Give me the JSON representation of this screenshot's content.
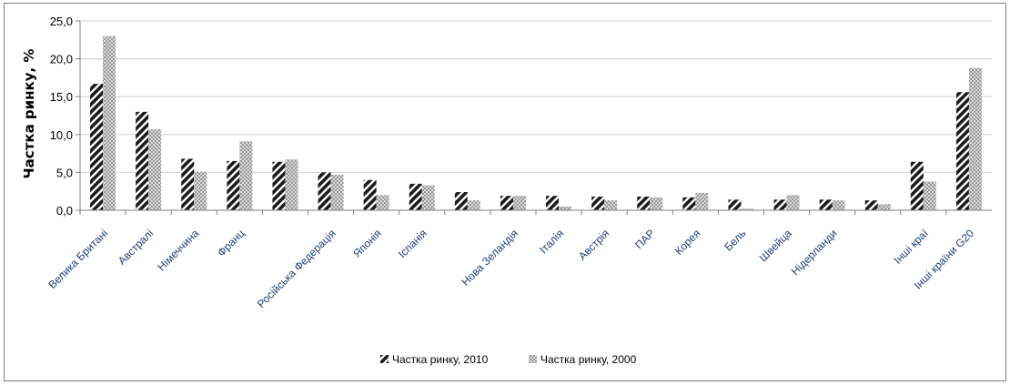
{
  "chart_data": {
    "type": "bar",
    "title": "",
    "xlabel": "",
    "ylabel": "Частка ринку, %",
    "ylim": [
      0,
      25
    ],
    "yticks": [
      "0,0",
      "5,0",
      "10,0",
      "15,0",
      "20,0",
      "25,0"
    ],
    "grid": true,
    "legend_position": "bottom",
    "categories": [
      "Велика Британі",
      "Австралі",
      "Німеччина",
      "Франц",
      "",
      "Російська Федерація",
      "Японія",
      "Іспанія",
      "",
      "Нова Зеландія",
      "Італія",
      "Австрія",
      "ПАР",
      "Корея",
      "Бель",
      "Швейца",
      "Нідерланди",
      "",
      "Інші краї",
      "Інші країни G20"
    ],
    "series": [
      {
        "name": "Частка ринку, 2010",
        "pattern": "dark-diagonal-stripes",
        "color": "#1a1a1a",
        "values": [
          16.7,
          13.0,
          6.8,
          6.5,
          6.4,
          5.0,
          4.0,
          3.5,
          2.4,
          1.9,
          1.9,
          1.8,
          1.8,
          1.7,
          1.4,
          1.4,
          1.4,
          1.3,
          6.4,
          15.6
        ]
      },
      {
        "name": "Частка ринку, 2000",
        "pattern": "light-grey-checker",
        "color": "#b0b0b0",
        "values": [
          23.0,
          10.7,
          5.1,
          9.1,
          6.7,
          4.7,
          2.0,
          3.3,
          1.3,
          1.9,
          0.5,
          1.3,
          1.7,
          2.3,
          0.2,
          2.0,
          1.3,
          0.8,
          3.8,
          18.8
        ]
      }
    ]
  }
}
